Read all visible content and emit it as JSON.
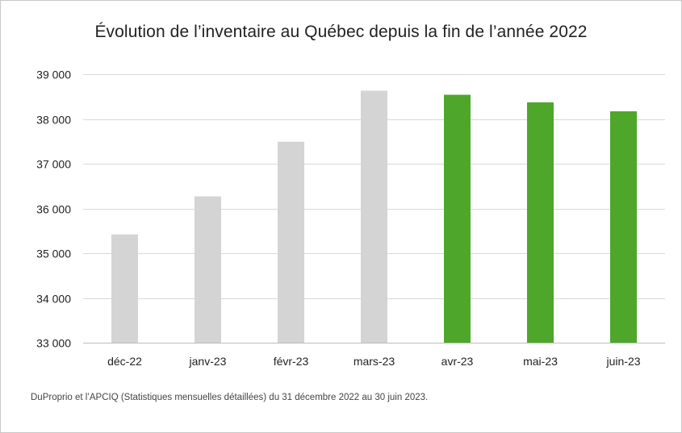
{
  "chart_data": {
    "type": "bar",
    "title": "Évolution de l’inventaire au Québec depuis la fin de l’année 2022",
    "categories": [
      "déc-22",
      "janv-23",
      "févr-23",
      "mars-23",
      "avr-23",
      "mai-23",
      "juin-23"
    ],
    "values": [
      35420,
      36270,
      37490,
      38630,
      38540,
      38370,
      38170
    ],
    "bar_colors": [
      "#d4d4d4",
      "#d4d4d4",
      "#d4d4d4",
      "#d4d4d4",
      "#4ea72a",
      "#4ea72a",
      "#4ea72a"
    ],
    "ylim": [
      33000,
      39000
    ],
    "yticks": [
      33000,
      34000,
      35000,
      36000,
      37000,
      38000,
      39000
    ],
    "ytick_labels": [
      "33 000",
      "34 000",
      "35 000",
      "36 000",
      "37 000",
      "38 000",
      "39 000"
    ],
    "xlabel": "",
    "ylabel": "",
    "grid": true,
    "legend": "none"
  },
  "source_note": "DuProprio et l’APCIQ (Statistiques mensuelles détaillées) du 31 décembre 2022 au 30 juin 2023."
}
